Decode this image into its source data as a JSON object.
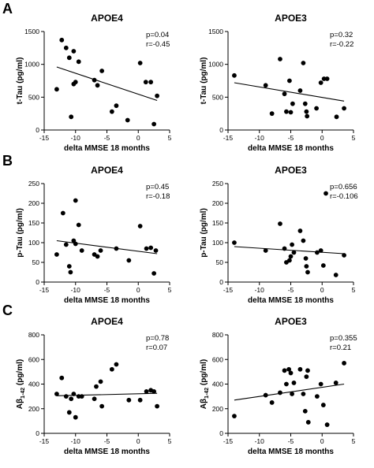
{
  "rows": [
    {
      "label": "A",
      "plots": [
        {
          "chart_data": {
            "type": "scatter",
            "title": "APOE4",
            "xlabel": "delta MMSE 18 months",
            "ylabel": "t-Tau (pg/ml)",
            "xlim": [
              -15,
              5
            ],
            "ylim": [
              0,
              1500
            ],
            "xticks": [
              "-15",
              "-10",
              "-5",
              "0",
              "5"
            ],
            "yticks": [
              "0",
              "500",
              "1000",
              "1500"
            ],
            "stats": [
              "p=0.04",
              "r=-0.45"
            ],
            "points": [
              [
                -13,
                620
              ],
              [
                -12.2,
                1370
              ],
              [
                -11.5,
                1250
              ],
              [
                -11,
                1100
              ],
              [
                -10.7,
                200
              ],
              [
                -10.3,
                700
              ],
              [
                -10.3,
                1200
              ],
              [
                -10,
                730
              ],
              [
                -9.5,
                1040
              ],
              [
                -7,
                760
              ],
              [
                -6.5,
                680
              ],
              [
                -5.8,
                900
              ],
              [
                -4.2,
                280
              ],
              [
                -3.5,
                370
              ],
              [
                -1.7,
                150
              ],
              [
                0.3,
                1020
              ],
              [
                1.2,
                730
              ],
              [
                2,
                730
              ],
              [
                2.5,
                90
              ],
              [
                3,
                520
              ]
            ],
            "fit": [
              [
                -13,
                960
              ],
              [
                3,
                450
              ]
            ],
            "grid": false
          }
        },
        {
          "chart_data": {
            "type": "scatter",
            "title": "APOE3",
            "xlabel": "delta MMSE 18 months",
            "ylabel": "t-Tau (pg/ml)",
            "xlim": [
              -15,
              5
            ],
            "ylim": [
              0,
              1500
            ],
            "xticks": [
              "-15",
              "-10",
              "-5",
              "0",
              "5"
            ],
            "yticks": [
              "0",
              "500",
              "1000",
              "1500"
            ],
            "stats": [
              "p=0.32",
              "r=-0.22"
            ],
            "points": [
              [
                -14,
                830
              ],
              [
                -9,
                680
              ],
              [
                -8,
                250
              ],
              [
                -6.7,
                1080
              ],
              [
                -6,
                550
              ],
              [
                -5.7,
                280
              ],
              [
                -5.2,
                750
              ],
              [
                -5,
                270
              ],
              [
                -4.7,
                400
              ],
              [
                -3.5,
                600
              ],
              [
                -3,
                1020
              ],
              [
                -2.7,
                400
              ],
              [
                -2.5,
                280
              ],
              [
                -2.4,
                210
              ],
              [
                -0.9,
                330
              ],
              [
                -0.2,
                720
              ],
              [
                0.3,
                780
              ],
              [
                0.8,
                780
              ],
              [
                2.3,
                200
              ],
              [
                3.5,
                330
              ]
            ],
            "fit": [
              [
                -14,
                720
              ],
              [
                3.5,
                440
              ]
            ],
            "grid": false
          }
        }
      ]
    },
    {
      "label": "B",
      "plots": [
        {
          "chart_data": {
            "type": "scatter",
            "title": "APOE4",
            "xlabel": "delta MMSE 18 months",
            "ylabel": "p-Tau (pg/ml)",
            "xlim": [
              -15,
              5
            ],
            "ylim": [
              0,
              250
            ],
            "xticks": [
              "-15",
              "-10",
              "-5",
              "0",
              "5"
            ],
            "yticks": [
              "0",
              "50",
              "100",
              "150",
              "200",
              "250"
            ],
            "stats": [
              "p=0.45",
              "r=-0.18"
            ],
            "points": [
              [
                -13,
                70
              ],
              [
                -12,
                175
              ],
              [
                -11.5,
                95
              ],
              [
                -11,
                40
              ],
              [
                -10.8,
                25
              ],
              [
                -10.3,
                105
              ],
              [
                -10,
                207
              ],
              [
                -10,
                97
              ],
              [
                -9.5,
                145
              ],
              [
                -9,
                80
              ],
              [
                -7,
                70
              ],
              [
                -6.5,
                65
              ],
              [
                -6,
                80
              ],
              [
                -3.5,
                85
              ],
              [
                -1.5,
                55
              ],
              [
                0.3,
                142
              ],
              [
                1.3,
                85
              ],
              [
                2,
                87
              ],
              [
                2.5,
                22
              ],
              [
                2.8,
                80
              ]
            ],
            "fit": [
              [
                -13,
                105
              ],
              [
                3,
                72
              ]
            ],
            "grid": false
          }
        },
        {
          "chart_data": {
            "type": "scatter",
            "title": "APOE3",
            "xlabel": "delta MMSE 18 months",
            "ylabel": "p-Tau (pg/ml)",
            "xlim": [
              -15,
              5
            ],
            "ylim": [
              0,
              250
            ],
            "xticks": [
              "-15",
              "-10",
              "-5",
              "0",
              "5"
            ],
            "yticks": [
              "0",
              "50",
              "100",
              "150",
              "200",
              "250"
            ],
            "stats": [
              "p=0.656",
              "r=-0.106"
            ],
            "points": [
              [
                -14,
                100
              ],
              [
                -9,
                80
              ],
              [
                -6.7,
                148
              ],
              [
                -6,
                85
              ],
              [
                -5.7,
                50
              ],
              [
                -5.2,
                55
              ],
              [
                -5,
                65
              ],
              [
                -4.8,
                95
              ],
              [
                -4.5,
                75
              ],
              [
                -3.5,
                130
              ],
              [
                -3,
                105
              ],
              [
                -2.6,
                60
              ],
              [
                -2.5,
                40
              ],
              [
                -2.3,
                25
              ],
              [
                -0.8,
                75
              ],
              [
                -0.2,
                80
              ],
              [
                0.2,
                42
              ],
              [
                0.6,
                225
              ],
              [
                2.2,
                18
              ],
              [
                3.5,
                68
              ]
            ],
            "fit": [
              [
                -14,
                90
              ],
              [
                3.5,
                72
              ]
            ],
            "grid": false
          }
        }
      ]
    },
    {
      "label": "C",
      "plots": [
        {
          "chart_data": {
            "type": "scatter",
            "title": "APOE4",
            "xlabel": "delta MMSE 18 months",
            "ylabel": "Aβ1-42 (pg/ml)",
            "ylabel_parts": [
              "Aβ",
              "1-42",
              " (pg/ml)"
            ],
            "xlim": [
              -15,
              5
            ],
            "ylim": [
              0,
              800
            ],
            "xticks": [
              "-15",
              "-10",
              "-5",
              "0",
              "5"
            ],
            "yticks": [
              "0",
              "200",
              "400",
              "600",
              "800"
            ],
            "stats": [
              "p=0.78",
              "r=0.07"
            ],
            "points": [
              [
                -13,
                320
              ],
              [
                -12.2,
                450
              ],
              [
                -11.5,
                300
              ],
              [
                -11,
                170
              ],
              [
                -10.7,
                280
              ],
              [
                -10.3,
                320
              ],
              [
                -10,
                130
              ],
              [
                -9.5,
                300
              ],
              [
                -9,
                300
              ],
              [
                -7,
                280
              ],
              [
                -6.7,
                380
              ],
              [
                -6,
                420
              ],
              [
                -5.8,
                220
              ],
              [
                -4.2,
                520
              ],
              [
                -3.5,
                560
              ],
              [
                -1.5,
                270
              ],
              [
                0.3,
                270
              ],
              [
                1.3,
                340
              ],
              [
                2,
                350
              ],
              [
                2.5,
                340
              ],
              [
                3,
                220
              ]
            ],
            "fit": [
              [
                -13,
                305
              ],
              [
                3,
                325
              ]
            ],
            "grid": false
          }
        },
        {
          "chart_data": {
            "type": "scatter",
            "title": "APOE3",
            "xlabel": "delta MMSE 18 months",
            "ylabel": "Aβ1-42 (pg/ml)",
            "ylabel_parts": [
              "Aβ",
              "1-42",
              " (pg/ml)"
            ],
            "xlim": [
              -15,
              5
            ],
            "ylim": [
              0,
              800
            ],
            "xticks": [
              "-15",
              "-10",
              "-5",
              "0",
              "5"
            ],
            "yticks": [
              "0",
              "200",
              "400",
              "600",
              "800"
            ],
            "stats": [
              "p=0.355",
              "r=0.21"
            ],
            "points": [
              [
                -14,
                140
              ],
              [
                -9,
                310
              ],
              [
                -8,
                250
              ],
              [
                -6.7,
                330
              ],
              [
                -6,
                510
              ],
              [
                -5.7,
                400
              ],
              [
                -5.3,
                520
              ],
              [
                -5,
                490
              ],
              [
                -4.8,
                320
              ],
              [
                -4.5,
                410
              ],
              [
                -3.5,
                520
              ],
              [
                -3,
                320
              ],
              [
                -2.7,
                180
              ],
              [
                -2.5,
                460
              ],
              [
                -2.3,
                510
              ],
              [
                -2.2,
                90
              ],
              [
                -0.8,
                300
              ],
              [
                -0.2,
                400
              ],
              [
                0.2,
                230
              ],
              [
                0.8,
                70
              ],
              [
                2.2,
                410
              ],
              [
                3.5,
                570
              ]
            ],
            "fit": [
              [
                -14,
                270
              ],
              [
                3.5,
                400
              ]
            ],
            "grid": false
          }
        }
      ]
    }
  ]
}
